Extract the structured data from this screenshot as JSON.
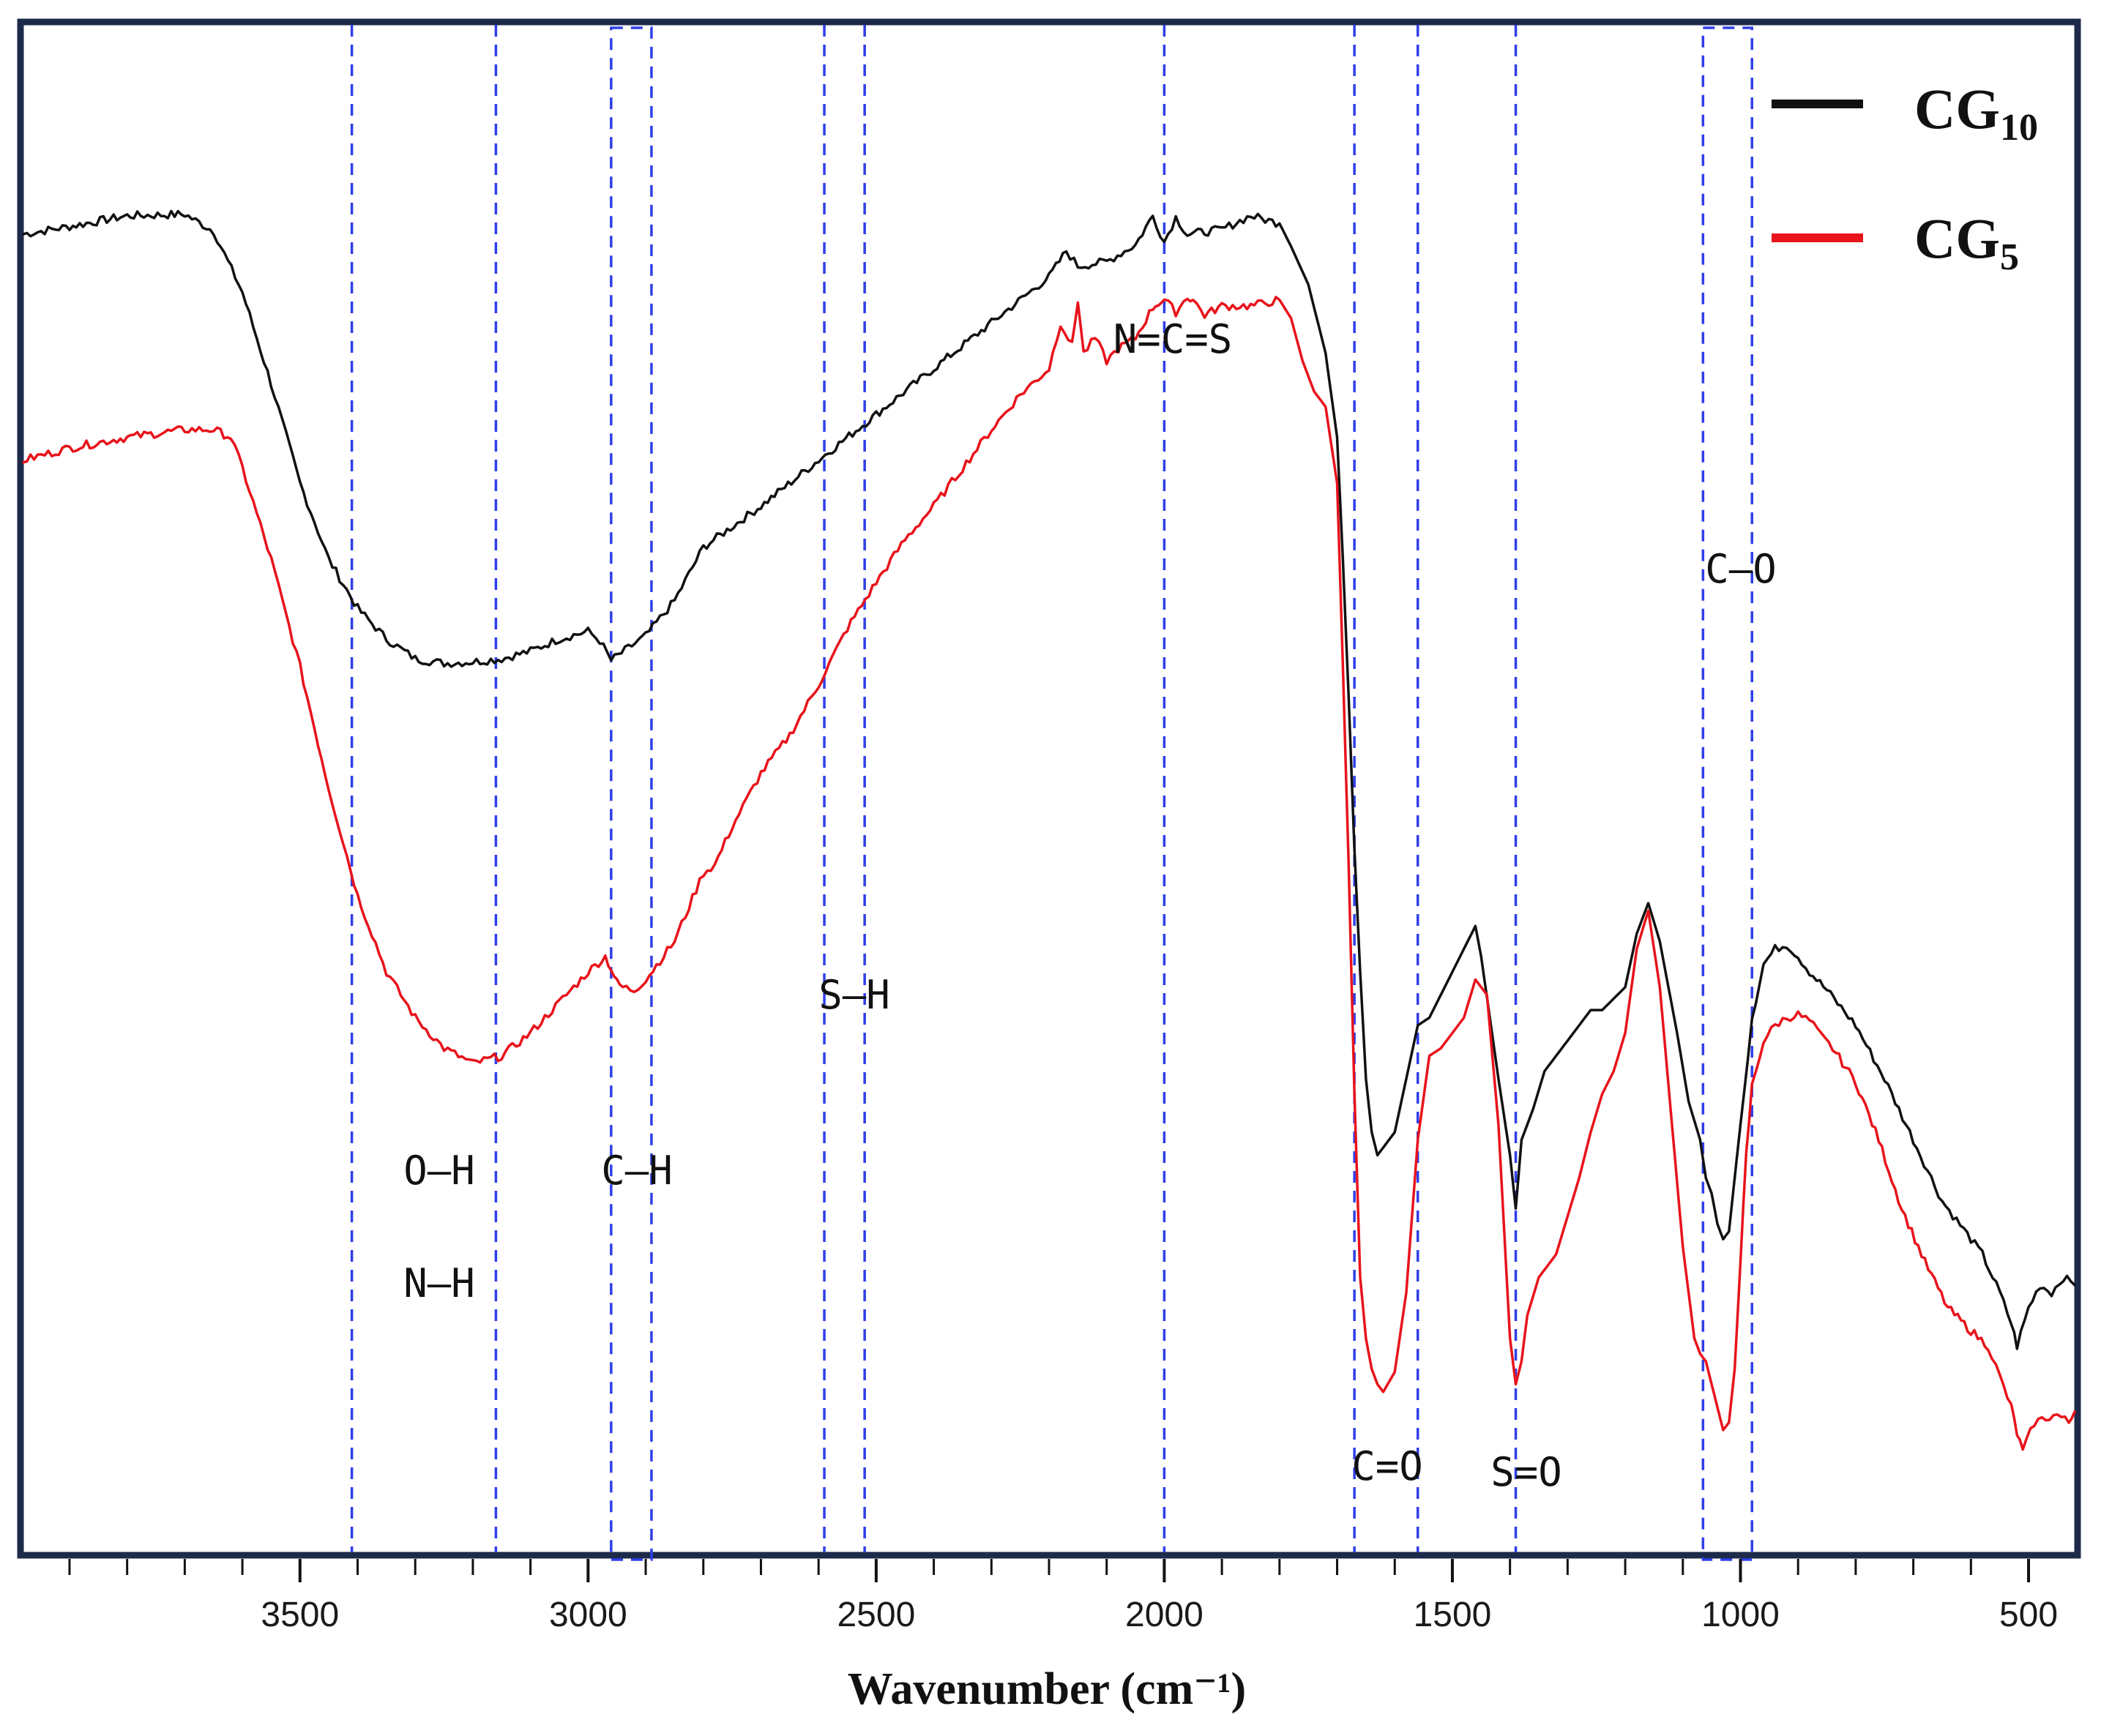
{
  "chart_data": {
    "type": "line",
    "title": "",
    "xlabel": "Wavenumber (cm⁻¹)",
    "ylabel": "",
    "xlim": [
      3980,
      420
    ],
    "ylim": [
      0,
      100
    ],
    "x_reversed": true,
    "grid": false,
    "x_ticks": [
      3500,
      3000,
      2500,
      2000,
      1500,
      1000,
      500
    ],
    "x_tick_labels": [
      "3500",
      "3000",
      "2500",
      "2000",
      "1500",
      "1000",
      "500"
    ],
    "legend_position": "top-right",
    "series": [
      {
        "name": "CG",
        "subscript": "10",
        "color": "#111111",
        "x": [
          3980,
          3900,
          3800,
          3700,
          3650,
          3600,
          3550,
          3500,
          3450,
          3400,
          3350,
          3300,
          3250,
          3200,
          3150,
          3100,
          3050,
          3000,
          2980,
          2960,
          2930,
          2900,
          2850,
          2800,
          2700,
          2600,
          2500,
          2400,
          2300,
          2200,
          2170,
          2150,
          2100,
          2050,
          2020,
          2000,
          1980,
          1960,
          1900,
          1850,
          1800,
          1780,
          1750,
          1720,
          1700,
          1690,
          1680,
          1670,
          1660,
          1650,
          1640,
          1630,
          1600,
          1580,
          1560,
          1540,
          1500,
          1480,
          1460,
          1450,
          1420,
          1400,
          1390,
          1380,
          1360,
          1340,
          1320,
          1300,
          1260,
          1240,
          1200,
          1180,
          1160,
          1140,
          1110,
          1090,
          1070,
          1060,
          1050,
          1040,
          1030,
          1020,
          1000,
          980,
          960,
          940,
          920,
          900,
          880,
          850,
          800,
          750,
          700,
          650,
          600,
          580,
          550,
          530,
          520,
          500,
          480,
          460,
          440,
          420
        ],
        "y": [
          86.3,
          86.8,
          87.5,
          87.6,
          86.5,
          82.5,
          76.5,
          70.0,
          65.0,
          61.8,
          59.8,
          58.5,
          58.2,
          58.3,
          58.5,
          59.0,
          59.8,
          60.3,
          59.7,
          58.4,
          59.2,
          60.0,
          62.3,
          65.8,
          68.5,
          71.5,
          74.5,
          77.5,
          80.5,
          83.5,
          85.2,
          84.2,
          84.5,
          85.6,
          87.5,
          85.8,
          87.4,
          86.3,
          86.6,
          87.5,
          87.0,
          85.5,
          83.0,
          78.5,
          73.0,
          65.0,
          56.0,
          46.0,
          38.0,
          31.0,
          27.5,
          26.0,
          27.5,
          31.0,
          34.5,
          35.0,
          38.0,
          39.5,
          41.0,
          39.0,
          31.0,
          26.0,
          22.5,
          27.0,
          29.0,
          31.5,
          32.5,
          33.5,
          35.5,
          35.5,
          37.0,
          40.5,
          42.5,
          40.0,
          34.0,
          29.5,
          27.0,
          24.5,
          23.5,
          21.5,
          20.5,
          21.0,
          28.0,
          35.0,
          38.5,
          39.5,
          39.8,
          39.0,
          38.0,
          36.8,
          34.5,
          31.0,
          27.0,
          23.0,
          20.5,
          19.5,
          17.0,
          15.0,
          13.5,
          16.0,
          17.5,
          17.0,
          18.0,
          17.5
        ]
      },
      {
        "name": "CG",
        "subscript": "5",
        "color": "#e8131b",
        "x": [
          3980,
          3900,
          3800,
          3700,
          3650,
          3620,
          3600,
          3550,
          3500,
          3450,
          3400,
          3350,
          3300,
          3250,
          3200,
          3150,
          3100,
          3050,
          3000,
          2970,
          2960,
          2950,
          2940,
          2920,
          2900,
          2850,
          2800,
          2780,
          2750,
          2700,
          2650,
          2600,
          2550,
          2500,
          2450,
          2400,
          2350,
          2300,
          2250,
          2200,
          2180,
          2160,
          2150,
          2140,
          2120,
          2100,
          2080,
          2050,
          2020,
          2010,
          2000,
          1980,
          1960,
          1950,
          1930,
          1900,
          1850,
          1800,
          1780,
          1760,
          1740,
          1720,
          1700,
          1690,
          1680,
          1670,
          1660,
          1650,
          1640,
          1630,
          1620,
          1600,
          1580,
          1560,
          1540,
          1520,
          1500,
          1480,
          1460,
          1440,
          1420,
          1400,
          1390,
          1380,
          1370,
          1350,
          1320,
          1300,
          1280,
          1260,
          1240,
          1220,
          1200,
          1180,
          1160,
          1140,
          1120,
          1100,
          1080,
          1070,
          1060,
          1050,
          1040,
          1030,
          1020,
          1010,
          1000,
          990,
          980,
          960,
          940,
          920,
          900,
          880,
          860,
          840,
          800,
          760,
          720,
          680,
          640,
          600,
          570,
          550,
          530,
          520,
          510,
          490,
          470,
          450,
          430,
          420
        ],
        "y": [
          71.5,
          72.3,
          73.0,
          73.5,
          73.5,
          73.0,
          71.0,
          65.0,
          58.0,
          50.0,
          43.0,
          38.0,
          35.0,
          33.0,
          32.0,
          32.5,
          34.0,
          36.0,
          38.0,
          39.0,
          38.2,
          37.3,
          37.0,
          36.8,
          37.5,
          40.0,
          44.5,
          45.0,
          47.5,
          51.0,
          53.5,
          56.8,
          60.5,
          63.5,
          66.3,
          68.5,
          71.0,
          73.5,
          75.8,
          77.5,
          80.5,
          79.0,
          82.0,
          78.5,
          79.5,
          78.0,
          78.8,
          79.5,
          81.5,
          81.8,
          82.0,
          81.2,
          82.2,
          82.0,
          81.0,
          81.6,
          81.6,
          82.0,
          80.8,
          78.0,
          76.0,
          75.0,
          70.0,
          58.0,
          45.0,
          30.0,
          18.0,
          14.0,
          12.0,
          11.0,
          10.5,
          11.8,
          17.0,
          27.0,
          32.5,
          33.0,
          34.0,
          35.0,
          37.5,
          36.5,
          28.0,
          14.0,
          11.0,
          12.5,
          15.5,
          18.0,
          19.5,
          22.0,
          24.5,
          27.5,
          30.0,
          31.5,
          34.0,
          39.5,
          42.0,
          37.0,
          28.5,
          20.0,
          14.0,
          13.0,
          12.5,
          11.0,
          9.5,
          8.0,
          8.5,
          12.0,
          19.0,
          26.0,
          30.5,
          33.5,
          34.5,
          35.0,
          35.2,
          34.8,
          33.8,
          33.0,
          30.8,
          27.0,
          22.5,
          19.0,
          16.0,
          14.5,
          13.5,
          11.5,
          9.5,
          7.8,
          6.6,
          8.5,
          8.8,
          9.0,
          8.5,
          9.2
        ]
      }
    ],
    "guides": [
      {
        "wavenumbers": [
          3410,
          3160
        ],
        "labels": [
          "O–H",
          "N–H"
        ],
        "box": false
      },
      {
        "wavenumbers": [
          2960,
          2890
        ],
        "labels": [
          "C–H"
        ],
        "box": true
      },
      {
        "wavenumbers": [
          2590,
          2520
        ],
        "labels": [
          "S–H"
        ],
        "box": false
      },
      {
        "wavenumbers": [
          2000
        ],
        "labels": [
          "N=C=S"
        ],
        "box": false
      },
      {
        "wavenumbers": [
          1670,
          1560
        ],
        "labels": [
          "C=O"
        ],
        "box": false
      },
      {
        "wavenumbers": [
          1390
        ],
        "labels": [
          "S=O"
        ],
        "box": false
      },
      {
        "wavenumbers": [
          1065,
          980
        ],
        "labels": [
          "C–O"
        ],
        "box": true
      }
    ]
  }
}
